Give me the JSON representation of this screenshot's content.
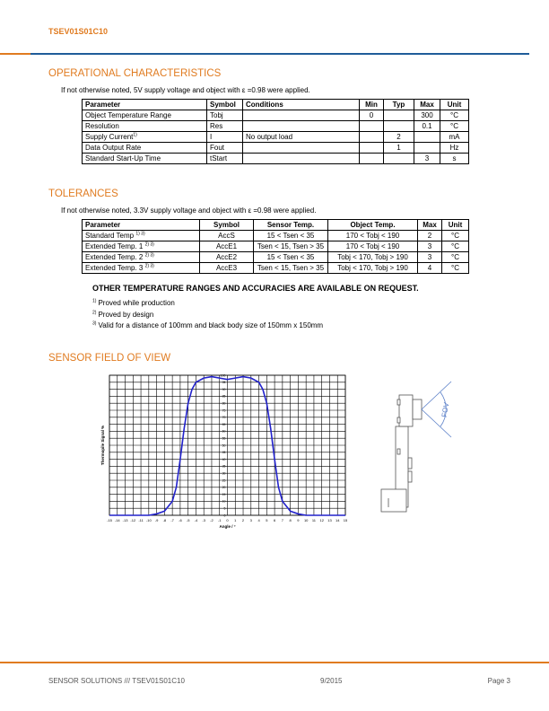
{
  "header": {
    "title": "TSEV01S01C10"
  },
  "operational": {
    "heading": "OPERATIONAL CHARACTERISTICS",
    "note": "If not otherwise noted, 5V supply voltage and object with ε =0.98 were applied.",
    "table": {
      "header": [
        "Parameter",
        "Symbol",
        "Conditions",
        "Min",
        "Typ",
        "Max",
        "Unit"
      ],
      "rows": [
        [
          "Object Temperature Range",
          "Tobj",
          null,
          0,
          null,
          300,
          "°C"
        ],
        [
          "Resolution",
          "Res",
          null,
          null,
          null,
          0.1,
          "°C"
        ],
        [
          {
            "text": "Supply Current",
            "note": "1)"
          },
          "I",
          "No output load",
          null,
          2,
          null,
          "mA"
        ],
        [
          "Data Output Rate",
          "Fout",
          null,
          null,
          1,
          null,
          "Hz"
        ],
        [
          "Standard Start-Up Time",
          "tStart",
          null,
          null,
          null,
          3,
          "s"
        ]
      ]
    }
  },
  "tolerances": {
    "heading": "TOLERANCES",
    "note": "If not otherwise noted, 3.3V supply voltage and object with ε =0.98 were applied.",
    "table": {
      "header": [
        "Parameter",
        "Symbol",
        "Sensor Temp.",
        "Object Temp.",
        "Max",
        "Unit"
      ],
      "rows": [
        [
          {
            "text": "Standard Temp ",
            "note": "1) 3)"
          },
          "AccS",
          "15 < Tsen < 35",
          "170 < Tobj < 190",
          2,
          "°C"
        ],
        [
          {
            "text": "Extended Temp. 1 ",
            "note": "2) 3)"
          },
          "AccE1",
          "Tsen < 15, Tsen > 35",
          "170 < Tobj < 190",
          3,
          "°C"
        ],
        [
          {
            "text": "Extended Temp. 2 ",
            "note": "2) 3)"
          },
          "AccE2",
          "15 < Tsen < 35",
          "Tobj < 170, Tobj > 190",
          3,
          "°C"
        ],
        [
          {
            "text": "Extended Temp. 3 ",
            "note": "2) 3)"
          },
          "AccE3",
          "Tsen < 15, Tsen > 35",
          "Tobj < 170, Tobj > 190",
          4,
          "°C"
        ]
      ]
    },
    "request": "OTHER TEMPERATURE RANGES AND ACCURACIES ARE AVAILABLE ON REQUEST.",
    "footnotes": [
      {
        "mark": "1)",
        "text": "Proved while production"
      },
      {
        "mark": "2)",
        "text": "Proved by design"
      },
      {
        "mark": "3)",
        "text": "Valid for a distance of 100mm and black body size of 150mm x 150mm"
      }
    ]
  },
  "fov": {
    "heading": "SENSOR FIELD OF VIEW",
    "chart": {
      "type": "line",
      "xlabel": "Angle / °",
      "ylabel": "Thermopile Signal %",
      "color": "#2222cc",
      "x": [
        -15,
        -14,
        -13,
        -12,
        -11,
        -10,
        -9,
        -8,
        -7,
        -6.5,
        -6,
        -5.5,
        -5,
        -4.5,
        -4,
        -3,
        -2,
        -1,
        0,
        1,
        2,
        3,
        4,
        4.5,
        5,
        5.5,
        6,
        6.5,
        7,
        8,
        9,
        10,
        11,
        12,
        13,
        14,
        15
      ],
      "values": [
        0,
        0,
        0,
        0,
        0,
        0,
        1,
        3,
        10,
        20,
        40,
        62,
        80,
        90,
        95,
        98,
        99,
        98,
        97,
        98,
        99,
        98,
        95,
        90,
        80,
        62,
        40,
        20,
        10,
        3,
        1,
        0,
        0,
        0,
        0,
        0,
        0
      ],
      "xlim": [
        -15,
        15
      ],
      "ylim": [
        0,
        100
      ],
      "xticks": [
        -15,
        -14,
        -13,
        -12,
        -11,
        -10,
        -9,
        -8,
        -7,
        -6,
        -5,
        -4,
        -3,
        -2,
        -1,
        0,
        1,
        2,
        3,
        4,
        5,
        6,
        7,
        8,
        9,
        10,
        11,
        12,
        13,
        14,
        15
      ],
      "yticks": [
        0,
        5,
        10,
        15,
        20,
        25,
        30,
        35,
        40,
        45,
        50,
        55,
        60,
        65,
        70,
        75,
        80,
        85,
        90,
        95,
        100
      ],
      "grid": true
    },
    "diagram": {
      "label": "FOV"
    }
  },
  "footer": {
    "left": "SENSOR SOLUTIONS /// TSEV01S01C10",
    "date": "9/2015",
    "page": "Page 3"
  }
}
